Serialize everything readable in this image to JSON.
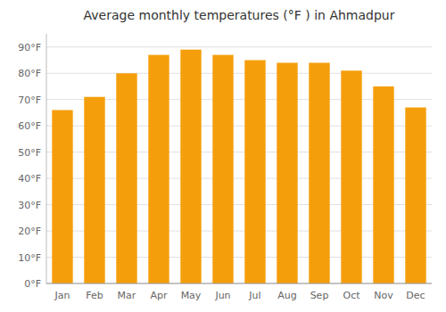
{
  "chart_data": {
    "type": "bar",
    "title": "Average monthly temperatures (°F ) in Ahmadpur",
    "categories": [
      "Jan",
      "Feb",
      "Mar",
      "Apr",
      "May",
      "Jun",
      "Jul",
      "Aug",
      "Sep",
      "Oct",
      "Nov",
      "Dec"
    ],
    "values": [
      66,
      71,
      80,
      87,
      89,
      87,
      85,
      84,
      84,
      81,
      75,
      67
    ],
    "color": "#F59E0B",
    "ylim": [
      0,
      95
    ],
    "yticks": [
      {
        "value": 0,
        "label": "0°F"
      },
      {
        "value": 10,
        "label": "10°F"
      },
      {
        "value": 20,
        "label": "20°F"
      },
      {
        "value": 30,
        "label": "30°F"
      },
      {
        "value": 40,
        "label": "40°F"
      },
      {
        "value": 50,
        "label": "50°F"
      },
      {
        "value": 60,
        "label": "60°F"
      },
      {
        "value": 70,
        "label": "70°F"
      },
      {
        "value": 80,
        "label": "80°F"
      },
      {
        "value": 90,
        "label": "90°F"
      }
    ],
    "grid": true
  }
}
